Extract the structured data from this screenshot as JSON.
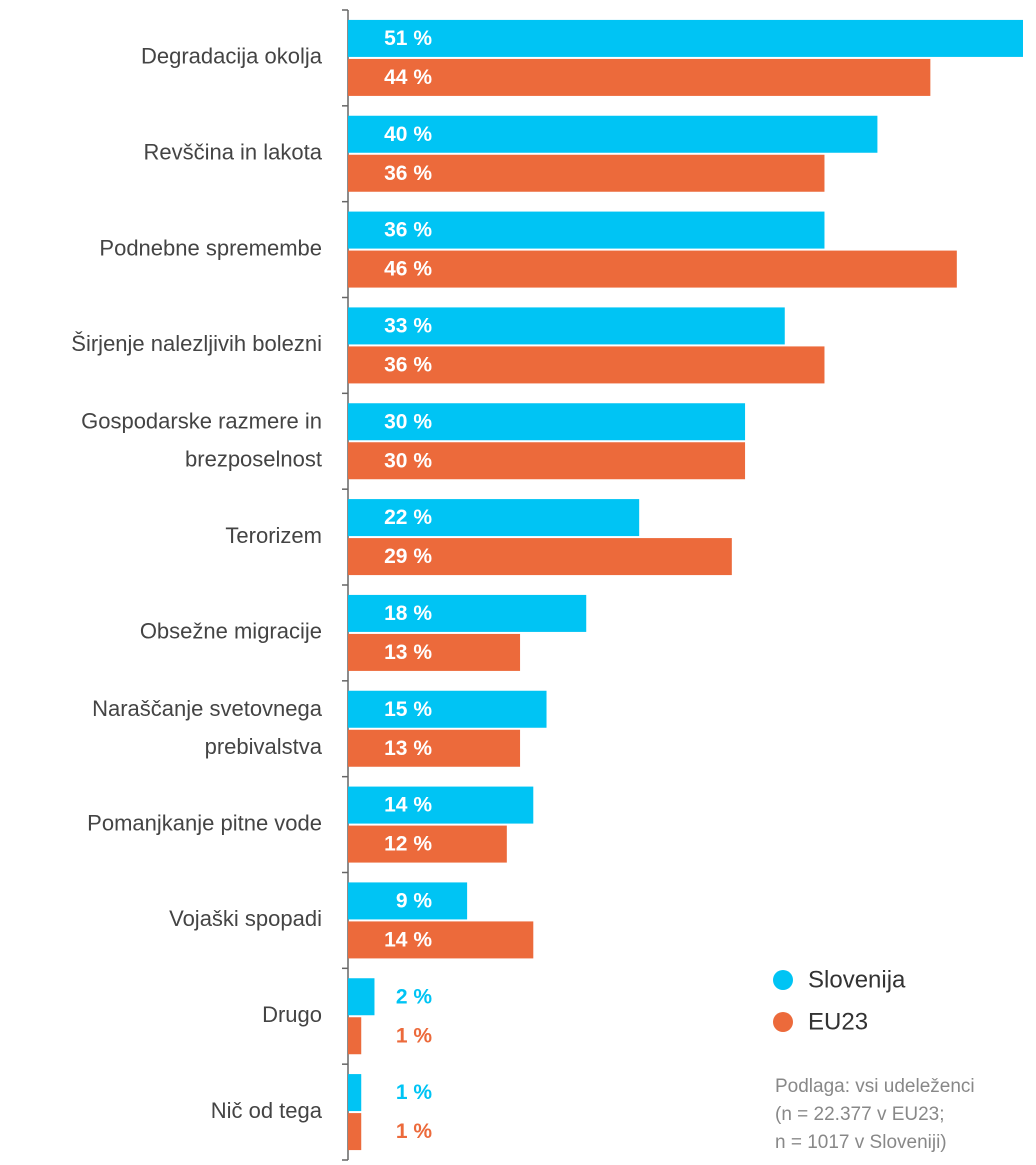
{
  "chart_data": {
    "type": "hbar",
    "categories": [
      "Degradacija okolja",
      "Revščina in lakota",
      "Podnebne spremembe",
      "Širjenje nalezljivih bolezni",
      "Gospodarske razmere in brezposelnost",
      "Terorizem",
      "Obsežne migracije",
      "Naraščanje svetovnega prebivalstva",
      "Pomanjkanje pitne vode",
      "Vojaški spopadi",
      "Drugo",
      "Nič od tega"
    ],
    "series": [
      {
        "name": "Slovenija",
        "color": "#00c4f4",
        "values": [
          51,
          40,
          36,
          33,
          30,
          22,
          18,
          15,
          14,
          9,
          2,
          1
        ],
        "value_labels": [
          "51 %",
          "40 %",
          "36 %",
          "33 %",
          "30 %",
          "22 %",
          "18 %",
          "15 %",
          "14 %",
          "9 %",
          "2 %",
          "1 %"
        ]
      },
      {
        "name": "EU23",
        "color": "#ec6a3b",
        "values": [
          44,
          36,
          46,
          36,
          30,
          29,
          13,
          13,
          12,
          14,
          1,
          1
        ],
        "value_labels": [
          "44 %",
          "36 %",
          "46 %",
          "36 %",
          "30 %",
          "29 %",
          "13 %",
          "13 %",
          "12 %",
          "14 %",
          "1 %",
          "1 %"
        ]
      }
    ],
    "note": [
      "Podlaga: vsi udeleženci",
      "(n = 22.377 v EU23;",
      "n = 1017 v Sloveniji)"
    ]
  }
}
